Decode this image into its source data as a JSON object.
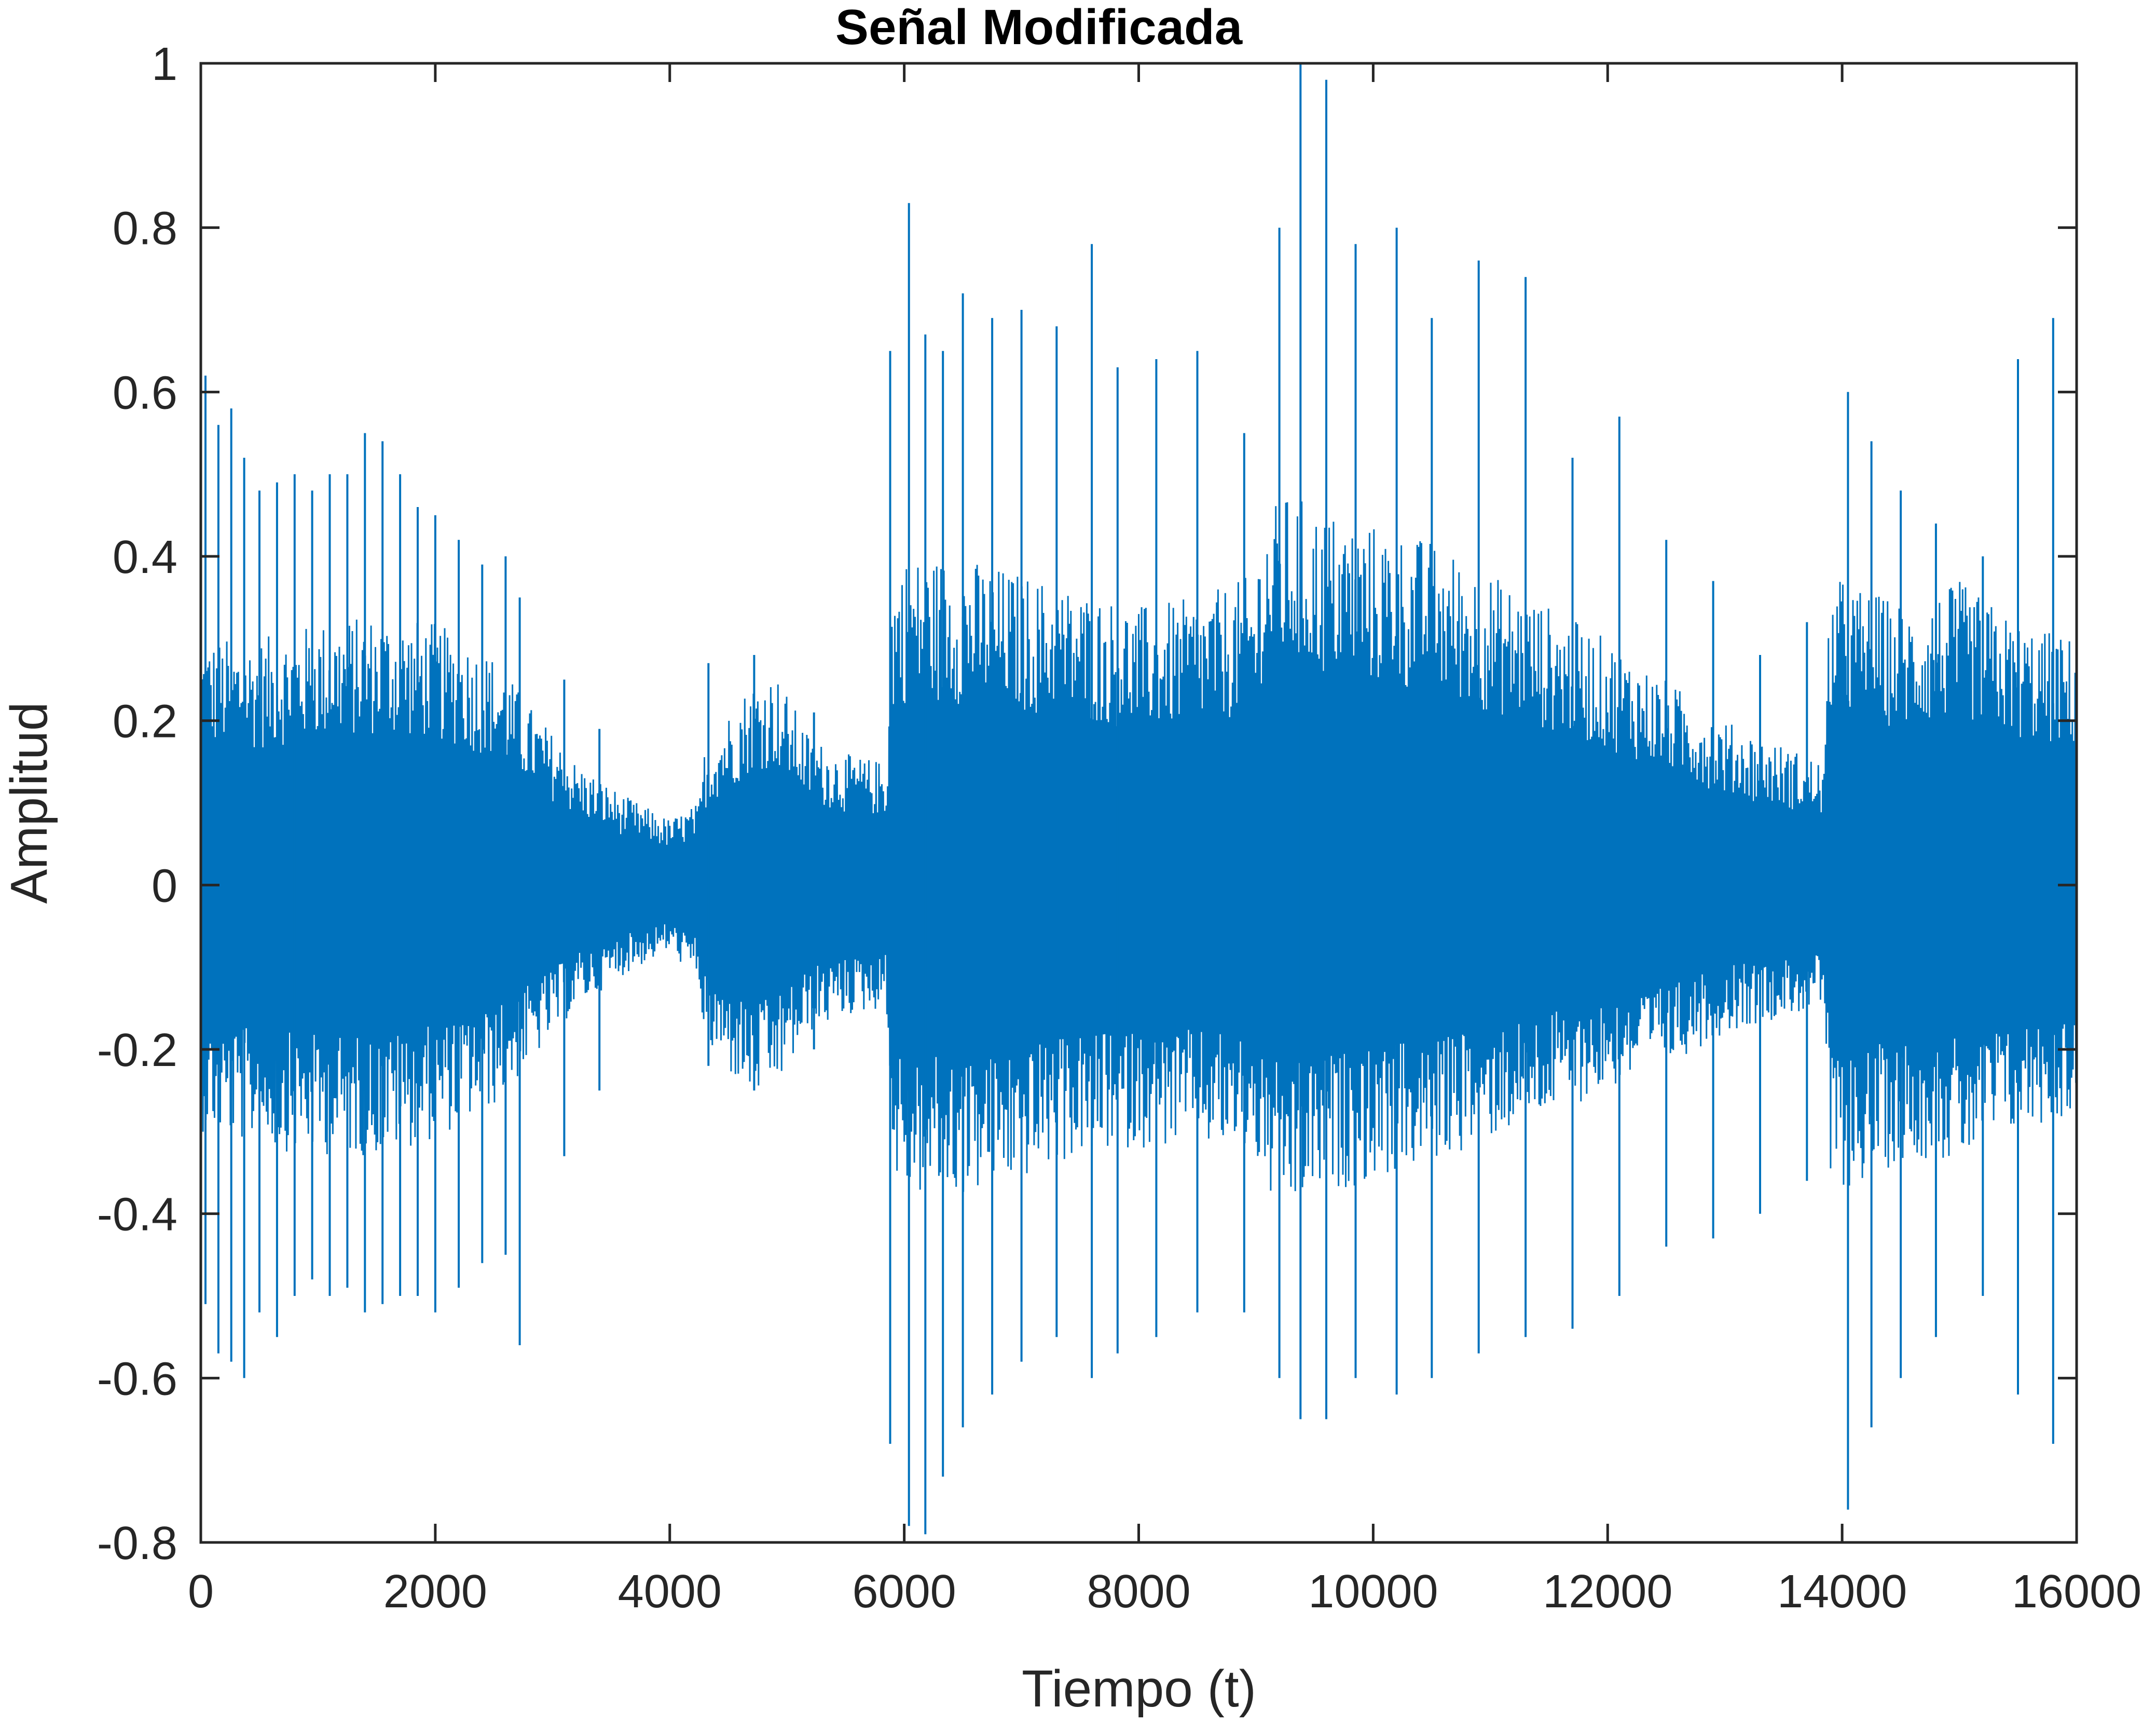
{
  "chart_data": {
    "type": "line",
    "title": "Señal Modificada",
    "xlabel": "Tiempo (t)",
    "ylabel": "Amplitud",
    "xlim": [
      0,
      16000
    ],
    "ylim": [
      -0.8,
      1
    ],
    "xticks": [
      "0",
      "2000",
      "4000",
      "6000",
      "8000",
      "10000",
      "12000",
      "14000",
      "16000"
    ],
    "yticks": [
      "-0.8",
      "-0.6",
      "-0.4",
      "-0.2",
      "0",
      "0.2",
      "0.4",
      "0.6",
      "0.8",
      "1"
    ],
    "grid": false,
    "box": true,
    "series_color": "#0072BD",
    "series": [
      {
        "envelope": {
          "x": [
            0,
            500,
            1000,
            1500,
            2000,
            2500,
            2800,
            3200,
            3600,
            4000,
            4250,
            4300,
            4700,
            4900,
            5200,
            5500,
            5850,
            5900,
            6000,
            6500,
            7000,
            7500,
            8000,
            8500,
            9000,
            9050,
            9300,
            9500,
            10000,
            10500,
            11000,
            11500,
            12000,
            12500,
            13000,
            13500,
            13850,
            13900,
            14200,
            14600,
            15000,
            15500,
            16000
          ],
          "upper": [
            0.3,
            0.3,
            0.32,
            0.33,
            0.32,
            0.28,
            0.22,
            0.15,
            0.11,
            0.08,
            0.1,
            0.17,
            0.25,
            0.26,
            0.18,
            0.16,
            0.15,
            0.38,
            0.4,
            0.4,
            0.38,
            0.36,
            0.34,
            0.35,
            0.38,
            0.45,
            0.48,
            0.46,
            0.44,
            0.42,
            0.38,
            0.34,
            0.3,
            0.25,
            0.2,
            0.17,
            0.15,
            0.38,
            0.36,
            0.34,
            0.37,
            0.32,
            0.3
          ],
          "lower": [
            -0.3,
            -0.32,
            -0.33,
            -0.33,
            -0.31,
            -0.27,
            -0.22,
            -0.15,
            -0.11,
            -0.08,
            -0.12,
            -0.2,
            -0.26,
            -0.25,
            -0.18,
            -0.16,
            -0.15,
            -0.35,
            -0.38,
            -0.38,
            -0.36,
            -0.33,
            -0.32,
            -0.32,
            -0.33,
            -0.38,
            -0.4,
            -0.38,
            -0.36,
            -0.34,
            -0.31,
            -0.28,
            -0.25,
            -0.22,
            -0.18,
            -0.16,
            -0.15,
            -0.38,
            -0.36,
            -0.33,
            -0.34,
            -0.3,
            -0.28
          ]
        },
        "peaks": {
          "x": [
            40,
            150,
            260,
            370,
            500,
            650,
            800,
            950,
            1100,
            1250,
            1400,
            1550,
            1700,
            1850,
            2000,
            2200,
            2400,
            2600,
            2720,
            3100,
            3400,
            4330,
            4720,
            5230,
            5880,
            6040,
            6180,
            6330,
            6500,
            6750,
            7000,
            7300,
            7600,
            7820,
            8150,
            8500,
            8900,
            9200,
            9380,
            9600,
            9850,
            10200,
            10500,
            10900,
            11300,
            11700,
            12100,
            12500,
            12900,
            13300,
            13700,
            14050,
            14250,
            14500,
            14800,
            15200,
            15500,
            15800
          ],
          "max": [
            0.62,
            0.56,
            0.58,
            0.52,
            0.48,
            0.49,
            0.5,
            0.48,
            0.5,
            0.5,
            0.55,
            0.54,
            0.5,
            0.46,
            0.45,
            0.42,
            0.39,
            0.4,
            0.35,
            0.25,
            0.19,
            0.27,
            0.28,
            0.21,
            0.65,
            0.83,
            0.67,
            0.65,
            0.72,
            0.69,
            0.7,
            0.68,
            0.78,
            0.63,
            0.64,
            0.65,
            0.55,
            0.8,
            1.0,
            0.98,
            0.78,
            0.8,
            0.69,
            0.76,
            0.74,
            0.52,
            0.57,
            0.42,
            0.37,
            0.28,
            0.32,
            0.6,
            0.54,
            0.48,
            0.44,
            0.4,
            0.64,
            0.69
          ],
          "min": [
            -0.51,
            -0.57,
            -0.58,
            -0.6,
            -0.52,
            -0.55,
            -0.5,
            -0.48,
            -0.5,
            -0.49,
            -0.52,
            -0.51,
            -0.5,
            -0.5,
            -0.52,
            -0.49,
            -0.46,
            -0.45,
            -0.56,
            -0.33,
            -0.25,
            -0.22,
            -0.25,
            -0.2,
            -0.68,
            -0.78,
            -0.79,
            -0.72,
            -0.66,
            -0.62,
            -0.58,
            -0.55,
            -0.6,
            -0.57,
            -0.55,
            -0.52,
            -0.52,
            -0.6,
            -0.65,
            -0.65,
            -0.6,
            -0.62,
            -0.6,
            -0.57,
            -0.55,
            -0.54,
            -0.5,
            -0.44,
            -0.43,
            -0.4,
            -0.36,
            -0.76,
            -0.66,
            -0.6,
            -0.55,
            -0.5,
            -0.62,
            -0.68
          ]
        }
      }
    ]
  }
}
